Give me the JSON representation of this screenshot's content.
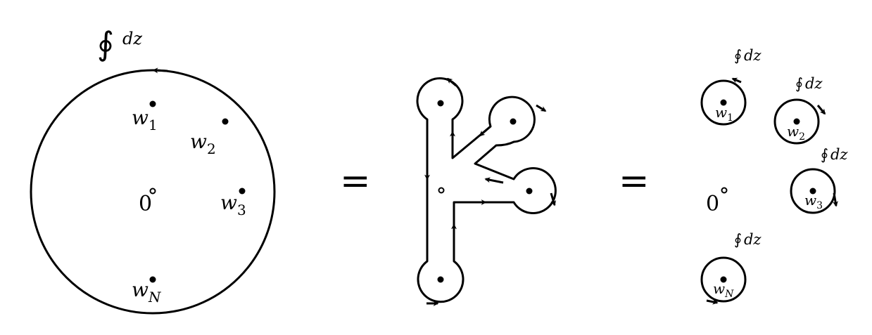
{
  "panels": {
    "left": {
      "integral_symbol": "∮",
      "integral_var": "dz",
      "origin_label": "0",
      "points": [
        {
          "var": "w",
          "sub": "1"
        },
        {
          "var": "w",
          "sub": "2"
        },
        {
          "var": "w",
          "sub": "3"
        },
        {
          "var": "w",
          "sub": "N"
        }
      ]
    },
    "right": {
      "origin_label": "0",
      "contour_labels": [
        {
          "sym": "∮",
          "var": "dz"
        },
        {
          "sym": "∮",
          "var": "dz"
        },
        {
          "sym": "∮",
          "var": "dz"
        },
        {
          "sym": "∮",
          "var": "dz"
        }
      ],
      "points": [
        {
          "var": "w",
          "sub": "1"
        },
        {
          "var": "w",
          "sub": "2"
        },
        {
          "var": "w",
          "sub": "3"
        },
        {
          "var": "w",
          "sub": "N"
        }
      ]
    }
  },
  "equals_1": "=",
  "equals_2": "=",
  "colors": {
    "ink": "#000000",
    "background": "#ffffff"
  }
}
